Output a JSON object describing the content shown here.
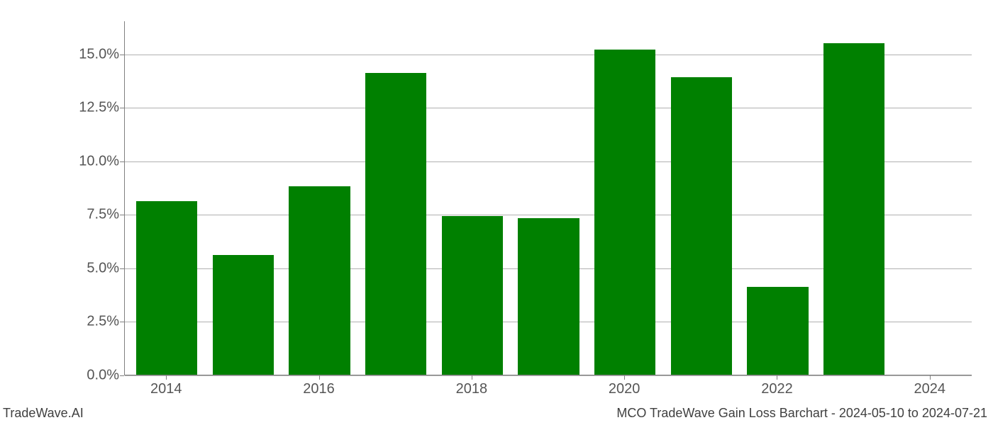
{
  "chart": {
    "type": "bar",
    "years": [
      2014,
      2015,
      2016,
      2017,
      2018,
      2019,
      2020,
      2021,
      2022,
      2023,
      2024
    ],
    "values": [
      8.1,
      5.6,
      8.8,
      14.1,
      7.4,
      7.3,
      15.2,
      13.9,
      4.1,
      15.5,
      0.0
    ],
    "bar_color": "#008000",
    "background_color": "#ffffff",
    "grid_color": "#b0b0b0",
    "axis_color": "#808080",
    "tick_color": "#555555",
    "ylim": [
      0,
      16.55
    ],
    "ytick_step": 2.5,
    "yticks": [
      "0.0%",
      "2.5%",
      "5.0%",
      "7.5%",
      "10.0%",
      "12.5%",
      "15.0%"
    ],
    "ytick_values": [
      0.0,
      2.5,
      5.0,
      7.5,
      10.0,
      12.5,
      15.0
    ],
    "xticks": [
      "2014",
      "2016",
      "2018",
      "2020",
      "2022",
      "2024"
    ],
    "xtick_values": [
      2014,
      2016,
      2018,
      2020,
      2022,
      2024
    ],
    "xlim": [
      2013.45,
      2024.55
    ],
    "bar_width": 0.8,
    "tick_fontsize": 20,
    "footer_fontsize": 18
  },
  "footer": {
    "left": "TradeWave.AI",
    "right": "MCO TradeWave Gain Loss Barchart - 2024-05-10 to 2024-07-21"
  }
}
